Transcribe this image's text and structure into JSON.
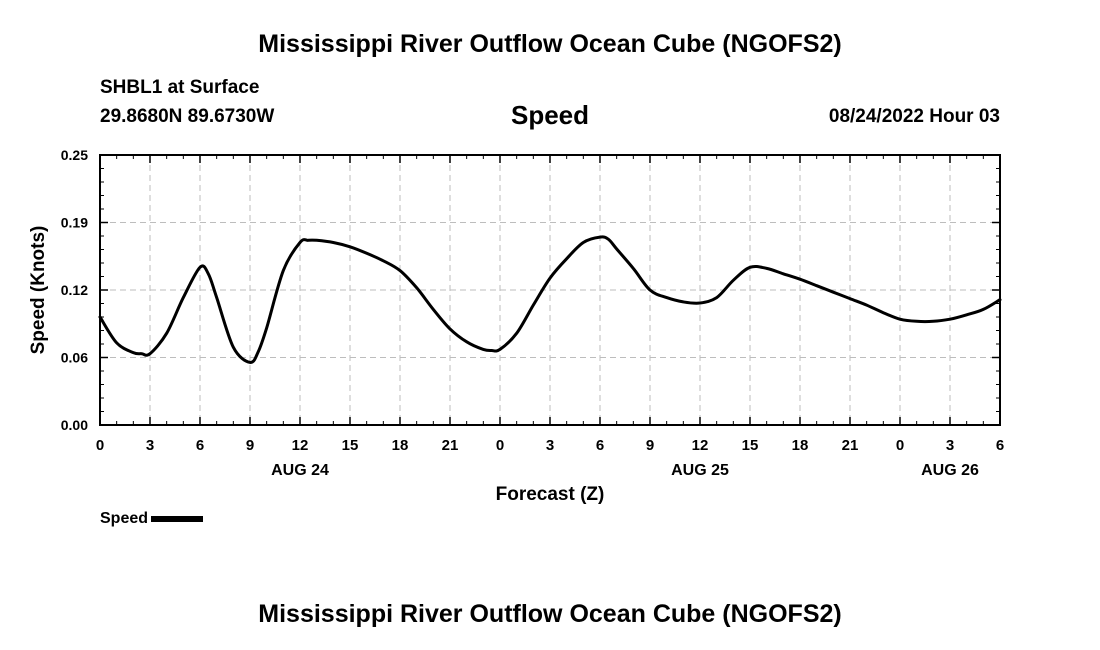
{
  "header": {
    "title": "Mississippi River Outflow Ocean Cube (NGOFS2)",
    "station": "SHBL1 at Surface",
    "coordinates": "29.8680N  89.6730W",
    "variable": "Speed",
    "datetime": "08/24/2022 Hour 03"
  },
  "footer": {
    "title": "Mississippi River Outflow Ocean Cube (NGOFS2)"
  },
  "legend": {
    "label": "Speed",
    "color": "#000000"
  },
  "chart_data": {
    "type": "line",
    "title": "Speed",
    "xlabel": "Forecast (Z)",
    "ylabel": "Speed (Knots)",
    "x_unit": "hours from 00Z Aug 24",
    "xlim": [
      0,
      54
    ],
    "ylim": [
      0,
      0.25
    ],
    "y_ticks": [
      "0.00",
      "0.06",
      "0.12",
      "0.19",
      "0.25"
    ],
    "y_tick_values": [
      0,
      0.0625,
      0.125,
      0.1875,
      0.25
    ],
    "x_tick_values": [
      0,
      3,
      6,
      9,
      12,
      15,
      18,
      21,
      24,
      27,
      30,
      33,
      36,
      39,
      42,
      45,
      48,
      51,
      54
    ],
    "x_tick_labels": [
      "0",
      "3",
      "6",
      "9",
      "12",
      "15",
      "18",
      "21",
      "0",
      "3",
      "6",
      "9",
      "12",
      "15",
      "18",
      "21",
      "0",
      "3",
      "6"
    ],
    "date_labels": [
      {
        "text": "AUG 24",
        "x": 12
      },
      {
        "text": "AUG 25",
        "x": 36
      },
      {
        "text": "AUG 26",
        "x": 51
      }
    ],
    "grid": true,
    "legend_position": "bottom-left",
    "series": [
      {
        "name": "Speed",
        "color": "#000000",
        "x": [
          0,
          1,
          2,
          2.5,
          3,
          4,
          5,
          6,
          6.5,
          7,
          8,
          9,
          9.5,
          10,
          11,
          12,
          12.5,
          13,
          14,
          15,
          16,
          17,
          18,
          19,
          20,
          21,
          22,
          23,
          23.5,
          24,
          25,
          26,
          27,
          28,
          29,
          30,
          30.5,
          31,
          32,
          33,
          34,
          35,
          36,
          37,
          38,
          39,
          40,
          41,
          42,
          43,
          44,
          45,
          46,
          47,
          48,
          49,
          50,
          51,
          52,
          53,
          54
        ],
        "y": [
          0.1,
          0.076,
          0.067,
          0.066,
          0.066,
          0.085,
          0.118,
          0.146,
          0.14,
          0.118,
          0.072,
          0.058,
          0.068,
          0.09,
          0.143,
          0.169,
          0.171,
          0.171,
          0.169,
          0.165,
          0.159,
          0.152,
          0.143,
          0.127,
          0.107,
          0.089,
          0.077,
          0.07,
          0.069,
          0.07,
          0.085,
          0.111,
          0.136,
          0.154,
          0.169,
          0.174,
          0.172,
          0.163,
          0.145,
          0.125,
          0.118,
          0.114,
          0.113,
          0.118,
          0.134,
          0.146,
          0.145,
          0.14,
          0.135,
          0.129,
          0.123,
          0.117,
          0.111,
          0.104,
          0.098,
          0.096,
          0.096,
          0.098,
          0.102,
          0.107,
          0.116
        ]
      }
    ]
  }
}
